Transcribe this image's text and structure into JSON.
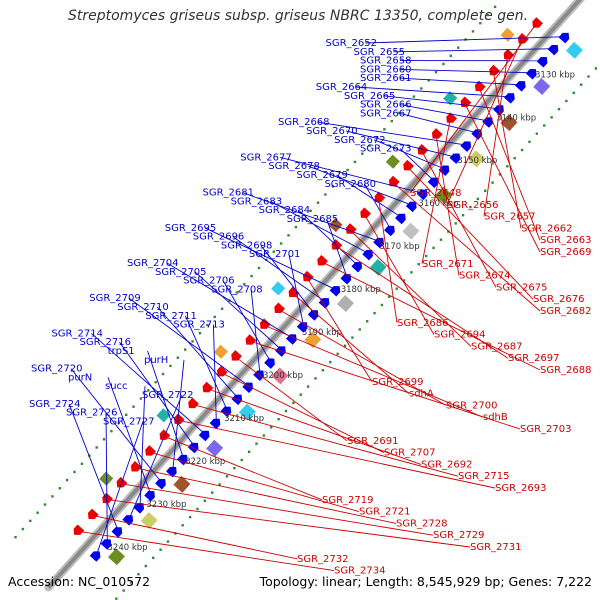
{
  "title": "Streptomyces griseus subsp. griseus NBRC 13350, complete gen...",
  "footer": {
    "accession": "Accession: NC_010572",
    "topology": "Topology: linear; Length: 8,545,929 bp; Genes: 7,222"
  },
  "colors": {
    "backbone": "#8a8a8a",
    "forward_gene": "#0000ee",
    "reverse_gene": "#ee0000",
    "tick_dot": "#2e8b2e",
    "label_forward": "#0000cc",
    "label_reverse": "#cc0000"
  },
  "scale_labels": [
    "3130 kbp",
    "3140 kbp",
    "3150 kbp",
    "3160 kbp",
    "3170 kbp",
    "3180 kbp",
    "3190 kbp",
    "3200 kbp",
    "3210 kbp",
    "3220 kbp",
    "3230 kbp",
    "3240 kbp"
  ],
  "forward_genes": [
    "SGR_2652",
    "SGR_2655",
    "SGR_2658",
    "SGR_2660",
    "SGR_2661",
    "SGR_2664",
    "SGR_2665",
    "SGR_2666",
    "SGR_2667",
    "SGR_2668",
    "SGR_2670",
    "SGR_2672",
    "SGR_2673",
    "SGR_2677",
    "SGR_2678",
    "SGR_2679",
    "SGR_2680",
    "SGR_2681",
    "SGR_2683",
    "SGR_2684",
    "SGR_2685",
    "SGR_2695",
    "SGR_2696",
    "SGR_2698",
    "SGR_2701",
    "SGR_2704",
    "SGR_2705",
    "SGR_2706",
    "SGR_2708",
    "SGR_2709",
    "SGR_2710",
    "SGR_2711",
    "SGR_2713",
    "SGR_2714",
    "SGR_2716",
    "trpS1",
    "purH",
    "SGR_2720",
    "purN",
    "succ",
    "SGR_2722",
    "SGR_2724",
    "SGR_2726",
    "SGR_2727"
  ],
  "reverse_genes": [
    "SGR_2648",
    "SGR_2656",
    "SGR_2657",
    "SGR_2662",
    "SGR_2663",
    "SGR_2669",
    "SGR_2671",
    "SGR_2674",
    "SGR_2675",
    "SGR_2676",
    "SGR_2682",
    "SGR_2686",
    "SGR_2694",
    "SGR_2687",
    "SGR_2697",
    "SGR_2688",
    "SGR_2699",
    "sdhA",
    "SGR_2700",
    "sdhB",
    "SGR_2703",
    "SGR_2691",
    "SGR_2707",
    "SGR_2692",
    "SGR_2715",
    "SGR_2693",
    "SGR_2719",
    "SGR_2721",
    "SGR_2728",
    "SGR_2729",
    "SGR_2731",
    "SGR_2732",
    "SGR_2734"
  ]
}
